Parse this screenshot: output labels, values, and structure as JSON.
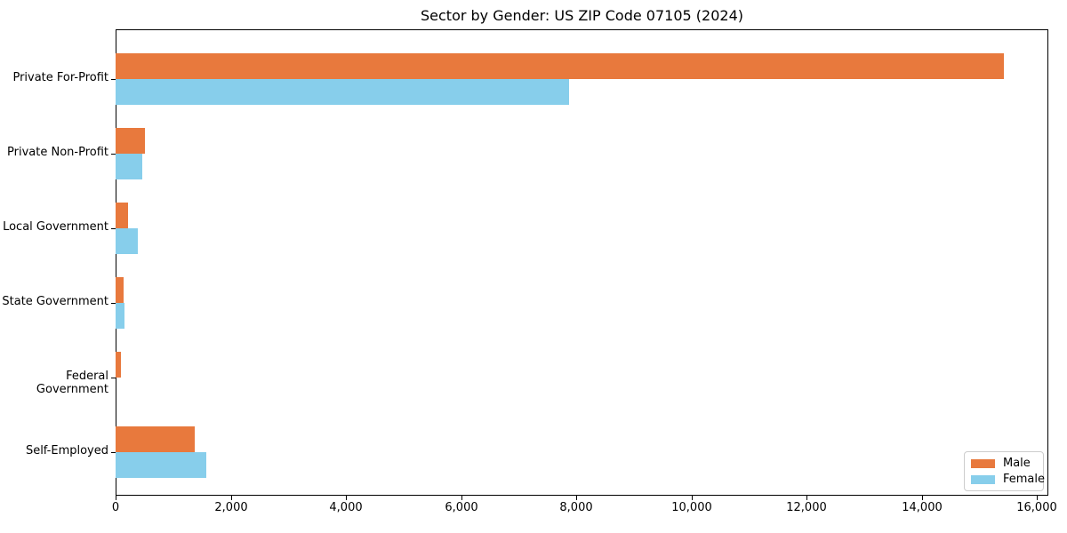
{
  "title": "Sector by Gender: US ZIP Code 07105 (2024)",
  "colors": {
    "male": "#e8793d",
    "female": "#87ceeb",
    "axis": "#000000",
    "legend_border": "#cccccc",
    "background": "#ffffff"
  },
  "legend": {
    "position": "lower right",
    "items": [
      {
        "label": "Male"
      },
      {
        "label": "Female"
      }
    ]
  },
  "chart_data": {
    "type": "bar",
    "orientation": "horizontal",
    "title": "Sector by Gender: US ZIP Code 07105 (2024)",
    "categories": [
      "Private For-Profit",
      "Private Non-Profit",
      "Local Government",
      "State Government",
      "Federal Government",
      "Self-Employed"
    ],
    "series": [
      {
        "name": "Male",
        "color": "#e8793d",
        "values": [
          15430,
          515,
          220,
          140,
          90,
          1380
        ]
      },
      {
        "name": "Female",
        "color": "#87ceeb",
        "values": [
          7880,
          460,
          380,
          150,
          0,
          1570
        ]
      }
    ],
    "xlabel": "",
    "ylabel": "",
    "xlim": [
      0,
      16200
    ],
    "xticks": [
      0,
      2000,
      4000,
      6000,
      8000,
      10000,
      12000,
      14000,
      16000
    ],
    "xtick_labels": [
      "0",
      "2,000",
      "4,000",
      "6,000",
      "8,000",
      "10,000",
      "12,000",
      "14,000",
      "16,000"
    ],
    "grid": false,
    "legend_position": "lower right"
  }
}
